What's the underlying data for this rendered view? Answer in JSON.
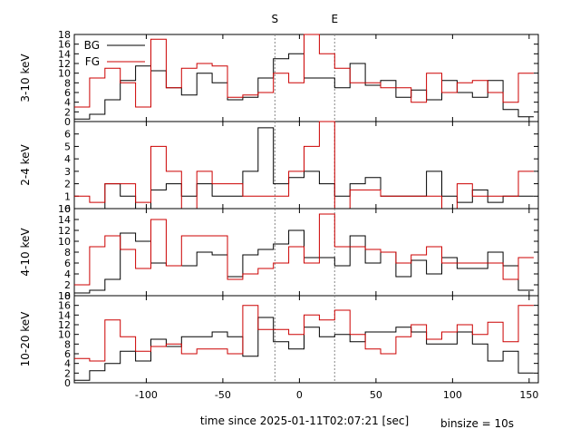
{
  "chart_data": {
    "type": "line",
    "xlabel": "time since 2025-01-11T02:07:21 [sec]",
    "binsize_label": "binsize = 10s",
    "xlim": [
      -147,
      156
    ],
    "xticks": [
      -100,
      -50,
      0,
      50,
      100,
      150
    ],
    "markers": [
      {
        "label": "S",
        "x": -16
      },
      {
        "label": "E",
        "x": 23
      }
    ],
    "colors": {
      "BG": "#000000",
      "FG": "#cc0000",
      "marker": "#888888"
    },
    "legend": {
      "placement": "top-left",
      "entries": [
        "BG",
        "FG"
      ]
    },
    "bin_edges": [
      -147,
      -137,
      -127,
      -117,
      -107,
      -97,
      -87,
      -77,
      -67,
      -57,
      -47,
      -37,
      -27,
      -17,
      -7,
      3,
      13,
      23,
      33,
      43,
      53,
      63,
      73,
      83,
      93,
      103,
      113,
      123,
      133,
      143,
      153
    ],
    "panels": [
      {
        "ylabel": "3-10 keV",
        "ylim": [
          0,
          18
        ],
        "yticks": [
          0,
          2,
          4,
          6,
          8,
          10,
          12,
          14,
          16,
          18
        ],
        "series": [
          {
            "name": "BG",
            "values": [
              0.5,
              1.5,
              4.5,
              8.5,
              11.5,
              10.5,
              7,
              5.5,
              10,
              8,
              4.5,
              5,
              9,
              13,
              14,
              9,
              9,
              7,
              12,
              7.5,
              8.5,
              5,
              6.5,
              4.5,
              8.5,
              6,
              5,
              8.5,
              2.5,
              1
            ]
          },
          {
            "name": "FG",
            "values": [
              3,
              9,
              11,
              8,
              3,
              17,
              7,
              11,
              12,
              11.5,
              5,
              5.5,
              6,
              10,
              8,
              18,
              14,
              11,
              8,
              8,
              7,
              7,
              4,
              10,
              6,
              8,
              8.5,
              6,
              4,
              10
            ]
          }
        ]
      },
      {
        "ylabel": "2-4 keV",
        "ylim": [
          0,
          7
        ],
        "yticks": [
          0,
          1,
          2,
          3,
          4,
          5,
          6
        ],
        "series": [
          {
            "name": "BG",
            "values": [
              0,
              0,
              2,
              1,
              0,
              1.5,
              2,
              1,
              2,
              1,
              1,
              3,
              6.5,
              2,
              2.5,
              3,
              2,
              1,
              2,
              2.5,
              1,
              1,
              1,
              3,
              1,
              0.5,
              1.5,
              0.5,
              1,
              1
            ]
          },
          {
            "name": "FG",
            "values": [
              1,
              0.5,
              2,
              2,
              0.5,
              5,
              3,
              0,
              3,
              2,
              2,
              1,
              1,
              1,
              3,
              5,
              7,
              0,
              1.5,
              1.5,
              1,
              1,
              1,
              1,
              0,
              2,
              1,
              1,
              1,
              3
            ]
          }
        ]
      },
      {
        "ylabel": "4-10 keV",
        "ylim": [
          0,
          16
        ],
        "yticks": [
          0,
          2,
          4,
          6,
          8,
          10,
          12,
          14,
          16
        ],
        "series": [
          {
            "name": "BG",
            "values": [
              0.5,
              1,
              3,
              11.5,
              10,
              6,
              5.5,
              5.5,
              8,
              7.5,
              3.5,
              7.5,
              8.5,
              9.5,
              12,
              7,
              7,
              5.5,
              11,
              6,
              8,
              3.5,
              6.5,
              4,
              7,
              5,
              5,
              8,
              5.5,
              1
            ]
          },
          {
            "name": "FG",
            "values": [
              2,
              9,
              11,
              8.5,
              5,
              14,
              5.5,
              11,
              11,
              11,
              3,
              4,
              5,
              6,
              9,
              6,
              15,
              9,
              9,
              8.5,
              8,
              6,
              7.5,
              9,
              6,
              6,
              6,
              6,
              3,
              7
            ]
          }
        ]
      },
      {
        "ylabel": "10-20 keV",
        "ylim": [
          0,
          18
        ],
        "yticks": [
          0,
          2,
          4,
          6,
          8,
          10,
          12,
          14,
          16,
          18
        ],
        "series": [
          {
            "name": "BG",
            "values": [
              0.5,
              2.5,
              4,
              6.5,
              4.5,
              9,
              7.5,
              9.5,
              9.5,
              10.5,
              9.5,
              5.5,
              13.5,
              8.5,
              7,
              11.5,
              9.5,
              10,
              8.5,
              10.5,
              10.5,
              11.5,
              10.5,
              8,
              8,
              10.5,
              8,
              4.5,
              6.5,
              2
            ]
          },
          {
            "name": "FG",
            "values": [
              5,
              4.5,
              13,
              9.5,
              6.5,
              7.5,
              8,
              6,
              7,
              7,
              6,
              16,
              11,
              11,
              10,
              14,
              13,
              15,
              10,
              7,
              6,
              9.5,
              12,
              9,
              10.5,
              12,
              10,
              12.5,
              8.5,
              16
            ]
          }
        ]
      }
    ]
  }
}
